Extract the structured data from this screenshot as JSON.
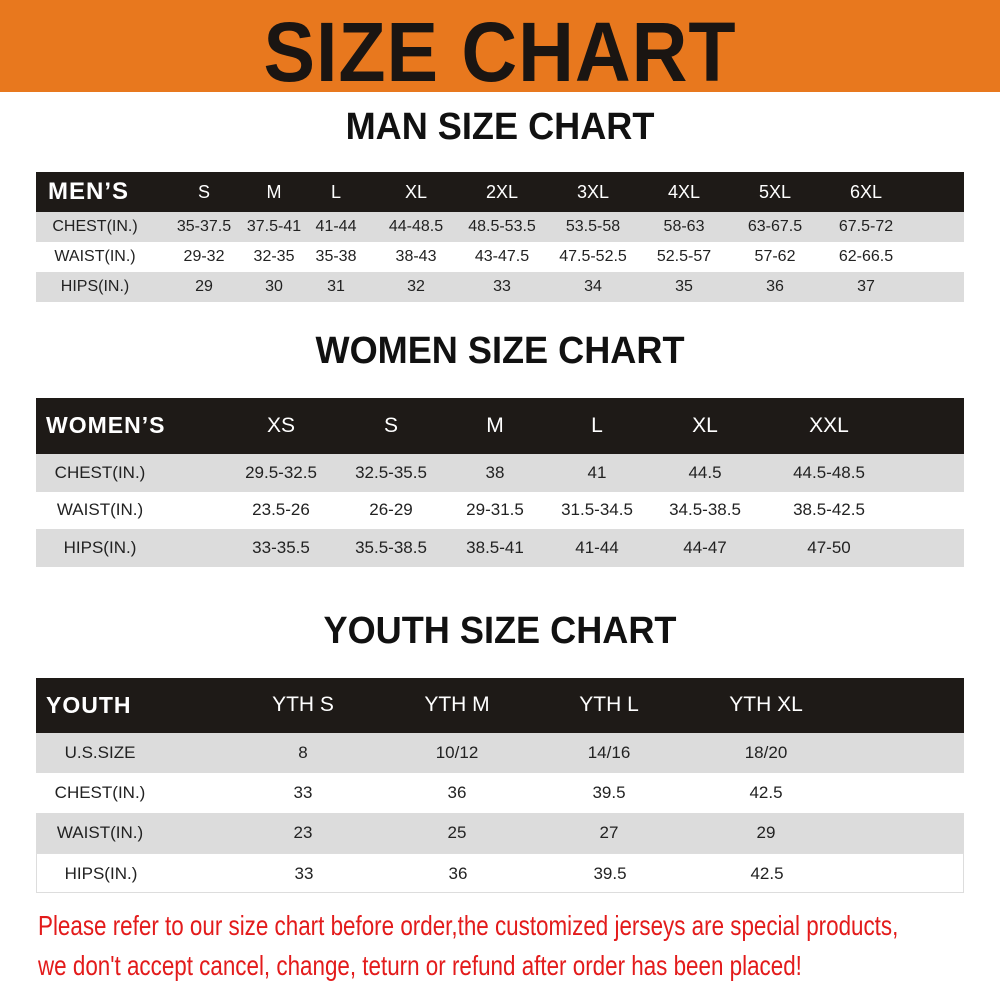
{
  "banner_title": "SIZE CHART",
  "colors": {
    "banner": "#e8781e",
    "header_row": "#1e1a17",
    "stripe": "#dcdcdc",
    "note": "#e31b1b"
  },
  "men": {
    "title": "MAN SIZE CHART",
    "header_label": "MEN’S",
    "sizes": [
      "S",
      "M",
      "L",
      "XL",
      "2XL",
      "3XL",
      "4XL",
      "5XL",
      "6XL"
    ],
    "rows": [
      {
        "label": "CHEST(IN.)",
        "values": [
          "35-37.5",
          "37.5-41",
          "41-44",
          "44-48.5",
          "48.5-53.5",
          "53.5-58",
          "58-63",
          "63-67.5",
          "67.5-72"
        ]
      },
      {
        "label": "WAIST(IN.)",
        "values": [
          "29-32",
          "32-35",
          "35-38",
          "38-43",
          "43-47.5",
          "47.5-52.5",
          "52.5-57",
          "57-62",
          "62-66.5"
        ]
      },
      {
        "label": "HIPS(IN.)",
        "values": [
          "29",
          "30",
          "31",
          "32",
          "33",
          "34",
          "35",
          "36",
          "37"
        ]
      }
    ]
  },
  "women": {
    "title": "WOMEN SIZE CHART",
    "header_label": "WOMEN’S",
    "sizes": [
      "XS",
      "S",
      "M",
      "L",
      "XL",
      "XXL"
    ],
    "rows": [
      {
        "label": "CHEST(IN.)",
        "values": [
          "29.5-32.5",
          "32.5-35.5",
          "38",
          "41",
          "44.5",
          "44.5-48.5"
        ]
      },
      {
        "label": "WAIST(IN.)",
        "values": [
          "23.5-26",
          "26-29",
          "29-31.5",
          "31.5-34.5",
          "34.5-38.5",
          "38.5-42.5"
        ]
      },
      {
        "label": "HIPS(IN.)",
        "values": [
          "33-35.5",
          "35.5-38.5",
          "38.5-41",
          "41-44",
          "44-47",
          "47-50"
        ]
      }
    ]
  },
  "youth": {
    "title": "YOUTH SIZE CHART",
    "header_label": "YOUTH",
    "sizes": [
      "YTH S",
      "YTH M",
      "YTH L",
      "YTH XL"
    ],
    "rows": [
      {
        "label": "U.S.SIZE",
        "values": [
          "8",
          "10/12",
          "14/16",
          "18/20"
        ]
      },
      {
        "label": "CHEST(IN.)",
        "values": [
          "33",
          "36",
          "39.5",
          "42.5"
        ]
      },
      {
        "label": "WAIST(IN.)",
        "values": [
          "23",
          "25",
          "27",
          "29"
        ]
      },
      {
        "label": "HIPS(IN.)",
        "values": [
          "33",
          "36",
          "39.5",
          "42.5"
        ]
      }
    ]
  },
  "notice": {
    "line1": "Please refer to our size chart before order,the customized jerseys are special products,",
    "line2": "we don't accept cancel, change, teturn or refund after order has been placed!"
  }
}
